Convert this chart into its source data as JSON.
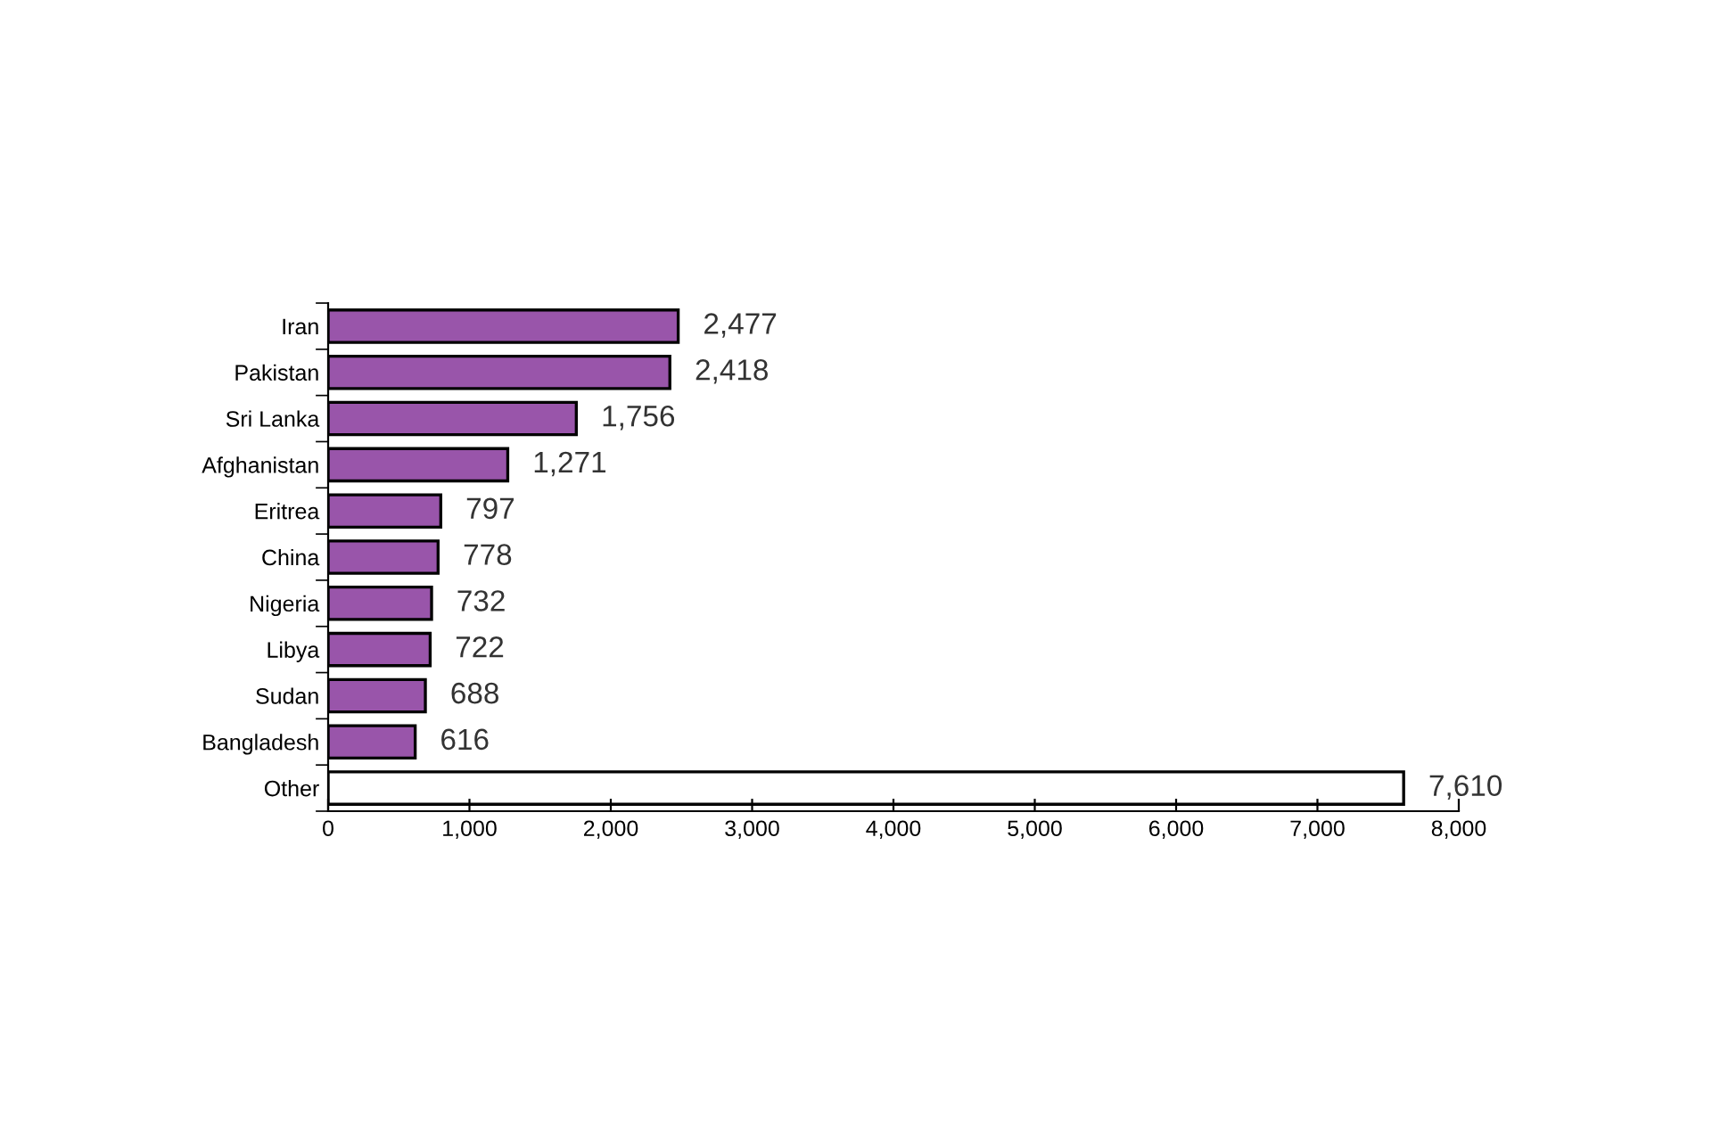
{
  "chart_data": {
    "type": "bar",
    "orientation": "horizontal",
    "categories": [
      "Iran",
      "Pakistan",
      "Sri Lanka",
      "Afghanistan",
      "Eritrea",
      "China",
      "Nigeria",
      "Libya",
      "Sudan",
      "Bangladesh",
      "Other"
    ],
    "values": [
      2477,
      2418,
      1756,
      1271,
      797,
      778,
      732,
      722,
      688,
      616,
      7610
    ],
    "colors": [
      "#9955aa",
      "#9955aa",
      "#9955aa",
      "#9955aa",
      "#9955aa",
      "#9955aa",
      "#9955aa",
      "#9955aa",
      "#9955aa",
      "#9955aa",
      "#ffffff"
    ],
    "value_labels": [
      "2,477",
      "2,418",
      "1,756",
      "1,271",
      "797",
      "778",
      "732",
      "722",
      "688",
      "616",
      "7,610"
    ],
    "xlim": [
      0,
      8000
    ],
    "xticks": [
      0,
      {
        "value": 1000,
        "label": "1,000"
      },
      {
        "value": 2000,
        "label": "2,000"
      },
      {
        "value": 3000,
        "label": "3,000"
      },
      {
        "value": 4000,
        "label": "4,000"
      },
      {
        "value": 5000,
        "label": "5,000"
      },
      {
        "value": 6000,
        "label": "6,000"
      },
      {
        "value": 7000,
        "label": "7,000"
      },
      {
        "value": 8000,
        "label": "8,000"
      }
    ],
    "grid": false,
    "legend": false
  }
}
